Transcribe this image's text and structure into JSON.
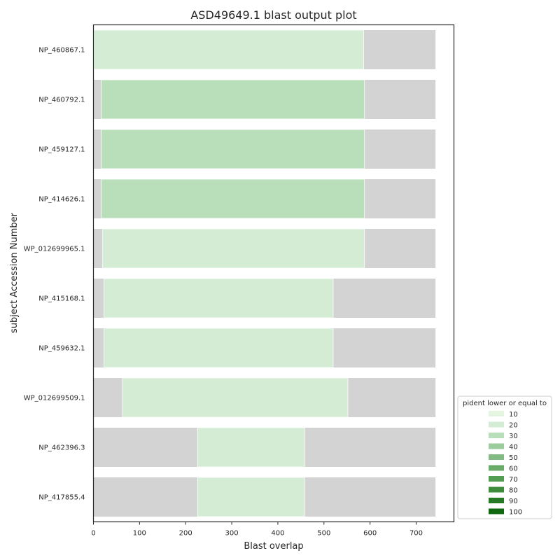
{
  "chart_data": {
    "type": "bar",
    "orientation": "horizontal",
    "title": "ASD49649.1 blast output plot",
    "xlabel": "Blast overlap",
    "ylabel": "subject Accession Number",
    "xlim": [
      0,
      782
    ],
    "xticks": [
      0,
      100,
      200,
      300,
      400,
      500,
      600,
      700
    ],
    "grid": false,
    "query_length": 742,
    "background_color": "#d3d3d3",
    "categories": [
      "NP_460867.1",
      "NP_460792.1",
      "NP_459127.1",
      "NP_414626.1",
      "WP_012699965.1",
      "NP_415168.1",
      "NP_459632.1",
      "WP_012699509.1",
      "NP_462396.3",
      "NP_417855.4"
    ],
    "alignments": [
      {
        "subject": "NP_460867.1",
        "start": 1,
        "end": 586,
        "pident_bin": 20
      },
      {
        "subject": "NP_460792.1",
        "start": 17,
        "end": 588,
        "pident_bin": 30
      },
      {
        "subject": "NP_459127.1",
        "start": 17,
        "end": 588,
        "pident_bin": 30
      },
      {
        "subject": "NP_414626.1",
        "start": 17,
        "end": 588,
        "pident_bin": 30
      },
      {
        "subject": "WP_012699965.1",
        "start": 20,
        "end": 588,
        "pident_bin": 20
      },
      {
        "subject": "NP_415168.1",
        "start": 23,
        "end": 520,
        "pident_bin": 20
      },
      {
        "subject": "NP_459632.1",
        "start": 23,
        "end": 520,
        "pident_bin": 20
      },
      {
        "subject": "WP_012699509.1",
        "start": 63,
        "end": 552,
        "pident_bin": 20
      },
      {
        "subject": "NP_462396.3",
        "start": 226,
        "end": 458,
        "pident_bin": 20
      },
      {
        "subject": "NP_417855.4",
        "start": 226,
        "end": 458,
        "pident_bin": 20
      }
    ],
    "legend": {
      "title": "pident lower or equal to",
      "placement": "lower-right outside",
      "entries": [
        {
          "label": "10",
          "color": "#e5f5e0"
        },
        {
          "label": "20",
          "color": "#d3ecd3"
        },
        {
          "label": "30",
          "color": "#b9dfba"
        },
        {
          "label": "40",
          "color": "#9ccb9c"
        },
        {
          "label": "50",
          "color": "#83bb83"
        },
        {
          "label": "60",
          "color": "#6aab6a"
        },
        {
          "label": "70",
          "color": "#529d52"
        },
        {
          "label": "80",
          "color": "#3c8c3c"
        },
        {
          "label": "90",
          "color": "#247b24"
        },
        {
          "label": "100",
          "color": "#0e690e"
        }
      ]
    }
  }
}
